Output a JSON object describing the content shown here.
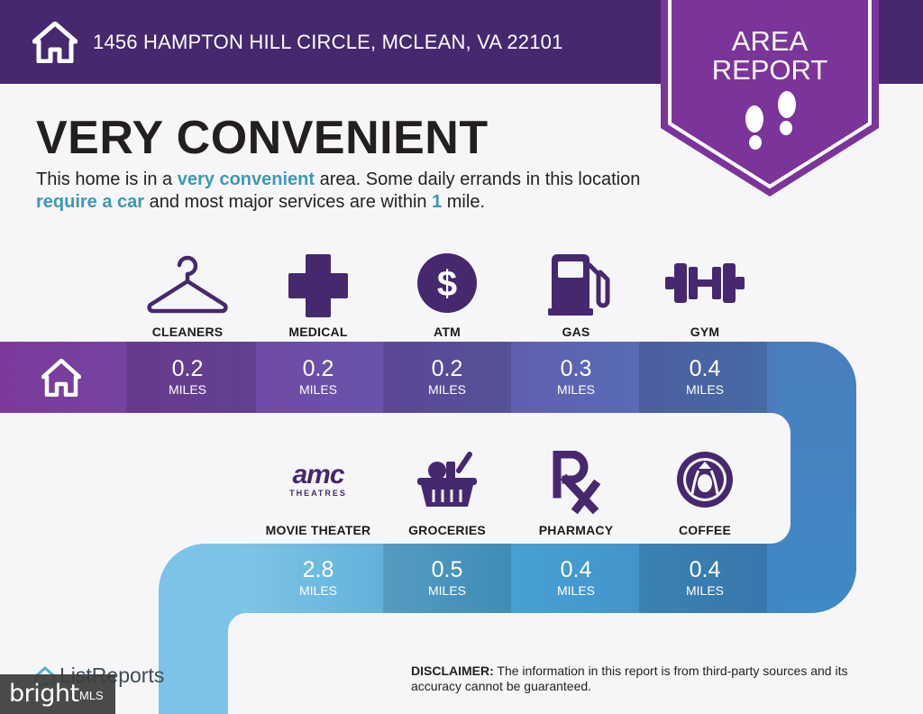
{
  "header": {
    "address": "1456 HAMPTON HILL CIRCLE, MCLEAN, VA 22101",
    "home_icon": "house-icon"
  },
  "badge": {
    "line1": "AREA",
    "line2": "REPORT",
    "icon": "footprints-icon"
  },
  "headline": "VERY CONVENIENT",
  "intro": {
    "t1": "This home is in a ",
    "h1": "very convenient",
    "t2": " area. Some daily errands in this location ",
    "h2": "require a car",
    "t3": " and most major services are within ",
    "h3": "1",
    "t4": " mile."
  },
  "row1": [
    {
      "label": "CLEANERS",
      "value": "0.2",
      "unit": "MILES",
      "icon": "hanger-icon"
    },
    {
      "label": "MEDICAL",
      "value": "0.2",
      "unit": "MILES",
      "icon": "medical-cross-icon"
    },
    {
      "label": "ATM",
      "value": "0.2",
      "unit": "MILES",
      "icon": "dollar-coin-icon"
    },
    {
      "label": "GAS",
      "value": "0.3",
      "unit": "MILES",
      "icon": "gas-pump-icon"
    },
    {
      "label": "GYM",
      "value": "0.4",
      "unit": "MILES",
      "icon": "dumbbell-icon"
    }
  ],
  "row2": [
    {
      "label": "MOVIE THEATER",
      "value": "2.8",
      "unit": "MILES",
      "icon": "amc-theatres-logo",
      "logo_text": "amc",
      "logo_sub": "THEATRES"
    },
    {
      "label": "GROCERIES",
      "value": "0.5",
      "unit": "MILES",
      "icon": "grocery-basket-icon"
    },
    {
      "label": "PHARMACY",
      "value": "0.4",
      "unit": "MILES",
      "icon": "rx-icon"
    },
    {
      "label": "COFFEE",
      "value": "0.4",
      "unit": "MILES",
      "icon": "starbucks-logo"
    }
  ],
  "colors": {
    "header": "#46286e",
    "accent": "#3a9ab4",
    "road_purple": "#7a3a9c",
    "road_blue": "#3f86c4",
    "road_light": "#7dc3e6"
  },
  "footer": {
    "disclaimer_label": "DISCLAIMER:",
    "disclaimer_text": " The information in this report is from third-party sources and its accuracy cannot be guaranteed.",
    "logo": "ListReports",
    "watermark": "bright",
    "watermark_sub": "MLS"
  }
}
